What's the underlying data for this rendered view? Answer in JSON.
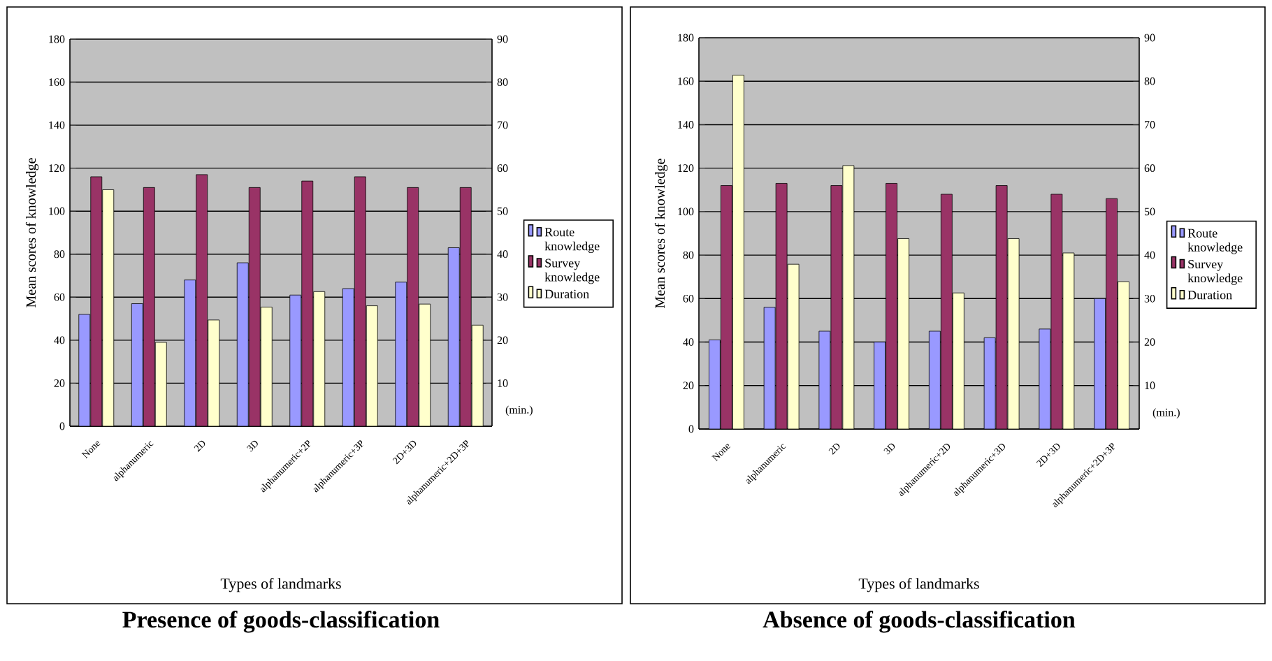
{
  "chart_data": [
    {
      "type": "bar",
      "title": "Presence of goods-classification",
      "xlabel": "Types of landmarks",
      "ylabel": "Mean scores of knowledge",
      "y2label": "(min.)",
      "categories": [
        "None",
        "alphanumeric",
        "2D",
        "3D",
        "alphanumeric+2P",
        "alphanumeric+3P",
        "2D+3D",
        "alphanumeric+2D+3P"
      ],
      "series": [
        {
          "name": "Route knowledge",
          "color": "#9999ff",
          "values": [
            52,
            57,
            68,
            76,
            61,
            64,
            67,
            83
          ]
        },
        {
          "name": "Survey knowledge",
          "color": "#993366",
          "values": [
            116,
            111,
            117,
            111,
            114,
            116,
            111,
            111
          ]
        },
        {
          "name": "Duration",
          "color": "#ffffcc",
          "axis": "y2",
          "values": [
            55,
            19.5,
            24.7,
            27.7,
            31.3,
            28,
            28.4,
            23.5
          ]
        }
      ],
      "ylim": [
        0,
        180
      ],
      "yticks": [
        0,
        20,
        40,
        60,
        80,
        100,
        120,
        140,
        160,
        180
      ],
      "y2lim": [
        0,
        90
      ],
      "y2ticks": [
        10,
        20,
        30,
        40,
        50,
        60,
        70,
        80,
        90
      ],
      "grid": "y",
      "legend": "right"
    },
    {
      "type": "bar",
      "title": "Absence of goods-classification",
      "xlabel": "Types of landmarks",
      "ylabel": "Mean scores of knowledge",
      "y2label": "(min.)",
      "categories": [
        "None",
        "alphanumeric",
        "2D",
        "3D",
        "alphanumeric+2D",
        "alphanumeric+3D",
        "2D+3D",
        "alphanumeric+2D+3P"
      ],
      "series": [
        {
          "name": "Route knowledge",
          "color": "#9999ff",
          "values": [
            41,
            56,
            45,
            40,
            45,
            42,
            46,
            60
          ]
        },
        {
          "name": "Survey knowledge",
          "color": "#993366",
          "values": [
            112,
            113,
            112,
            113,
            108,
            112,
            108,
            106
          ]
        },
        {
          "name": "Duration",
          "color": "#ffffcc",
          "axis": "y2",
          "values": [
            81.4,
            37.9,
            60.6,
            43.8,
            31.3,
            43.8,
            40.5,
            33.9
          ]
        }
      ],
      "ylim": [
        0,
        180
      ],
      "yticks": [
        0,
        20,
        40,
        60,
        80,
        100,
        120,
        140,
        160,
        180
      ],
      "y2lim": [
        0,
        90
      ],
      "y2ticks": [
        10,
        20,
        30,
        40,
        50,
        60,
        70,
        80,
        90
      ],
      "grid": "y",
      "legend": "right"
    }
  ]
}
